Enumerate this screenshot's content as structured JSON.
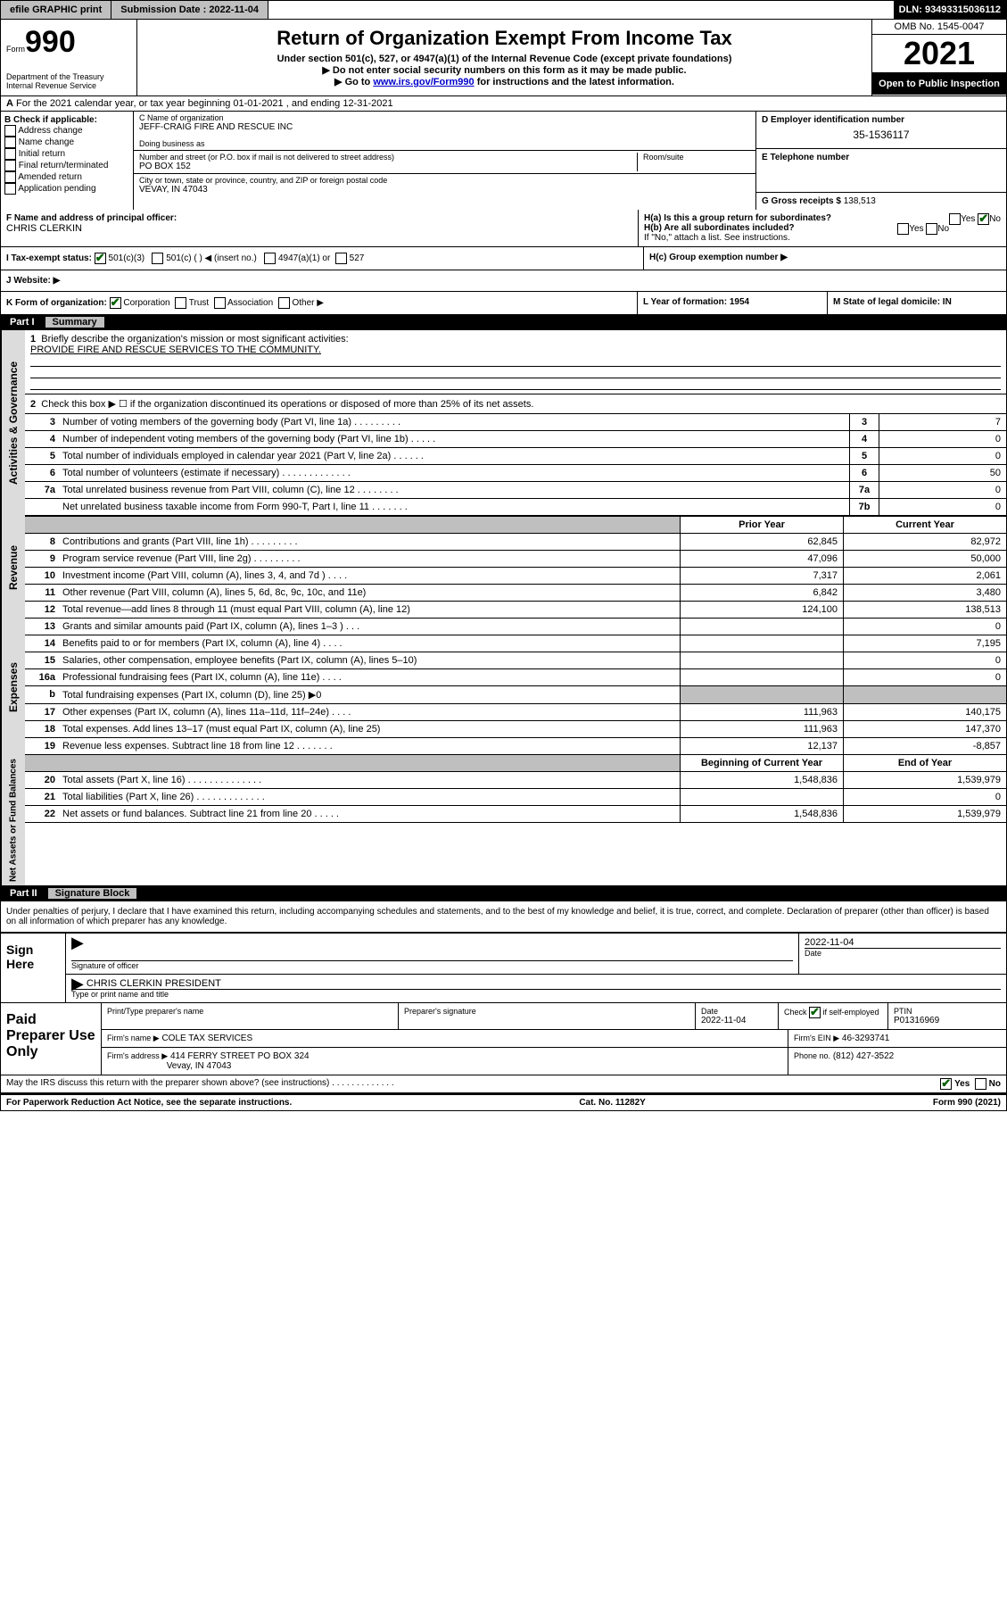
{
  "topbar": {
    "efile": "efile GRAPHIC print",
    "sub_label": "Submission Date : 2022-11-04",
    "dln": "DLN: 93493315036112"
  },
  "header": {
    "form_prefix": "Form",
    "form_num": "990",
    "dept": "Department of the Treasury\nInternal Revenue Service",
    "title": "Return of Organization Exempt From Income Tax",
    "sub1": "Under section 501(c), 527, or 4947(a)(1) of the Internal Revenue Code (except private foundations)",
    "sub2": "▶ Do not enter social security numbers on this form as it may be made public.",
    "sub3_pre": "▶ Go to ",
    "sub3_link": "www.irs.gov/Form990",
    "sub3_post": " for instructions and the latest information.",
    "omb": "OMB No. 1545-0047",
    "year": "2021",
    "open": "Open to Public Inspection"
  },
  "periodA": "For the 2021 calendar year, or tax year beginning 01-01-2021   , and ending 12-31-2021",
  "B": {
    "label": "B Check if applicable:",
    "items": [
      "Address change",
      "Name change",
      "Initial return",
      "Final return/terminated",
      "Amended return",
      "Application pending"
    ]
  },
  "C": {
    "name_label": "C Name of organization",
    "name": "JEFF-CRAIG FIRE AND RESCUE INC",
    "dba": "Doing business as",
    "street_label": "Number and street (or P.O. box if mail is not delivered to street address)",
    "street": "PO BOX 152",
    "room_label": "Room/suite",
    "city_label": "City or town, state or province, country, and ZIP or foreign postal code",
    "city": "VEVAY, IN  47043"
  },
  "D": {
    "label": "D Employer identification number",
    "value": "35-1536117"
  },
  "E": {
    "label": "E Telephone number",
    "value": ""
  },
  "G": {
    "label": "G Gross receipts $",
    "value": "138,513"
  },
  "F": {
    "label": "F Name and address of principal officer:",
    "value": "CHRIS CLERKIN"
  },
  "H": {
    "a_label": "H(a)  Is this a group return for subordinates?",
    "a_yes": "Yes",
    "a_no": "No",
    "a_checked": "no",
    "b_label": "H(b)  Are all subordinates included?",
    "b_note": "If \"No,\" attach a list. See instructions.",
    "c_label": "H(c)  Group exemption number ▶"
  },
  "I": {
    "label": "I   Tax-exempt status:",
    "opts": [
      "501(c)(3)",
      "501(c) (  ) ◀ (insert no.)",
      "4947(a)(1) or",
      "527"
    ]
  },
  "J": {
    "label": "J   Website: ▶"
  },
  "K": {
    "label": "K Form of organization:",
    "opts": [
      "Corporation",
      "Trust",
      "Association",
      "Other ▶"
    ]
  },
  "L": {
    "label": "L Year of formation: 1954"
  },
  "M": {
    "label": "M State of legal domicile: IN"
  },
  "part1": {
    "header": "Part I",
    "title": "Summary",
    "q1": "Briefly describe the organization's mission or most significant activities:",
    "mission": "PROVIDE FIRE AND RESCUE SERVICES TO THE COMMUNITY.",
    "q2": "Check this box ▶ ☐  if the organization discontinued its operations or disposed of more than 25% of its net assets."
  },
  "governance": {
    "label": "Activities & Governance",
    "rows": [
      {
        "n": "3",
        "d": "Number of voting members of the governing body (Part VI, line 1a)  .   .   .   .   .   .   .   .   .",
        "box": "3",
        "v": "7"
      },
      {
        "n": "4",
        "d": "Number of independent voting members of the governing body (Part VI, line 1b)   .   .   .   .   .",
        "box": "4",
        "v": "0"
      },
      {
        "n": "5",
        "d": "Total number of individuals employed in calendar year 2021 (Part V, line 2a)  .   .   .   .   .   .",
        "box": "5",
        "v": "0"
      },
      {
        "n": "6",
        "d": "Total number of volunteers (estimate if necessary)   .   .   .   .   .   .   .   .   .   .   .   .   .",
        "box": "6",
        "v": "50"
      },
      {
        "n": "7a",
        "d": "Total unrelated business revenue from Part VIII, column (C), line 12   .   .   .   .   .   .   .   .",
        "box": "7a",
        "v": "0"
      },
      {
        "n": "",
        "d": "Net unrelated business taxable income from Form 990-T, Part I, line 11   .   .   .   .   .   .   .",
        "box": "7b",
        "v": "0"
      }
    ]
  },
  "revenue": {
    "label": "Revenue",
    "head_prior": "Prior Year",
    "head_cur": "Current Year",
    "rows": [
      {
        "n": "8",
        "d": "Contributions and grants (Part VIII, line 1h)   .   .   .   .   .   .   .   .   .",
        "p": "62,845",
        "c": "82,972"
      },
      {
        "n": "9",
        "d": "Program service revenue (Part VIII, line 2g)   .   .   .   .   .   .   .   .   .",
        "p": "47,096",
        "c": "50,000"
      },
      {
        "n": "10",
        "d": "Investment income (Part VIII, column (A), lines 3, 4, and 7d )   .   .   .   .",
        "p": "7,317",
        "c": "2,061"
      },
      {
        "n": "11",
        "d": "Other revenue (Part VIII, column (A), lines 5, 6d, 8c, 9c, 10c, and 11e)",
        "p": "6,842",
        "c": "3,480"
      },
      {
        "n": "12",
        "d": "Total revenue—add lines 8 through 11 (must equal Part VIII, column (A), line 12)",
        "p": "124,100",
        "c": "138,513"
      }
    ]
  },
  "expenses": {
    "label": "Expenses",
    "rows": [
      {
        "n": "13",
        "d": "Grants and similar amounts paid (Part IX, column (A), lines 1–3 )   .   .   .",
        "p": "",
        "c": "0"
      },
      {
        "n": "14",
        "d": "Benefits paid to or for members (Part IX, column (A), line 4)   .   .   .   .",
        "p": "",
        "c": "7,195"
      },
      {
        "n": "15",
        "d": "Salaries, other compensation, employee benefits (Part IX, column (A), lines 5–10)",
        "p": "",
        "c": "0"
      },
      {
        "n": "16a",
        "d": "Professional fundraising fees (Part IX, column (A), line 11e)   .   .   .   .",
        "p": "",
        "c": "0"
      },
      {
        "n": "b",
        "d": "Total fundraising expenses (Part IX, column (D), line 25) ▶0",
        "p": "shaded",
        "c": "shaded"
      },
      {
        "n": "17",
        "d": "Other expenses (Part IX, column (A), lines 11a–11d, 11f–24e)   .   .   .   .",
        "p": "111,963",
        "c": "140,175"
      },
      {
        "n": "18",
        "d": "Total expenses. Add lines 13–17 (must equal Part IX, column (A), line 25)",
        "p": "111,963",
        "c": "147,370"
      },
      {
        "n": "19",
        "d": "Revenue less expenses. Subtract line 18 from line 12   .   .   .   .   .   .   .",
        "p": "12,137",
        "c": "-8,857"
      }
    ]
  },
  "netassets": {
    "label": "Net Assets or Fund Balances",
    "head_begin": "Beginning of Current Year",
    "head_end": "End of Year",
    "rows": [
      {
        "n": "20",
        "d": "Total assets (Part X, line 16)   .   .   .   .   .   .   .   .   .   .   .   .   .   .",
        "p": "1,548,836",
        "c": "1,539,979"
      },
      {
        "n": "21",
        "d": "Total liabilities (Part X, line 26)   .   .   .   .   .   .   .   .   .   .   .   .   .",
        "p": "",
        "c": "0"
      },
      {
        "n": "22",
        "d": "Net assets or fund balances. Subtract line 21 from line 20   .   .   .   .   .",
        "p": "1,548,836",
        "c": "1,539,979"
      }
    ]
  },
  "part2": {
    "header": "Part II",
    "title": "Signature Block",
    "perjury": "Under penalties of perjury, I declare that I have examined this return, including accompanying schedules and statements, and to the best of my knowledge and belief, it is true, correct, and complete. Declaration of preparer (other than officer) is based on all information of which preparer has any knowledge."
  },
  "sign": {
    "label": "Sign Here",
    "sig_officer": "Signature of officer",
    "date": "Date",
    "date_val": "2022-11-04",
    "name_title": "CHRIS CLERKIN  PRESIDENT",
    "name_label": "Type or print name and title"
  },
  "preparer": {
    "label": "Paid Preparer Use Only",
    "h1": "Print/Type preparer's name",
    "h2": "Preparer's signature",
    "h3": "Date",
    "h3v": "2022-11-04",
    "h4": "Check ☑ if self-employed",
    "h5": "PTIN",
    "h5v": "P01316969",
    "firm_label": "Firm's name    ▶",
    "firm": "COLE TAX SERVICES",
    "ein_label": "Firm's EIN ▶",
    "ein": "46-3293741",
    "addr_label": "Firm's address ▶",
    "addr1": "414 FERRY STREET PO BOX 324",
    "addr2": "Vevay, IN  47043",
    "phone_label": "Phone no.",
    "phone": "(812) 427-3522"
  },
  "footer": {
    "discuss": "May the IRS discuss this return with the preparer shown above? (see instructions)   .   .   .   .   .   .   .   .   .   .   .   .   .",
    "yes": "Yes",
    "no": "No",
    "pra": "For Paperwork Reduction Act Notice, see the separate instructions.",
    "cat": "Cat. No. 11282Y",
    "form": "Form 990 (2021)"
  }
}
